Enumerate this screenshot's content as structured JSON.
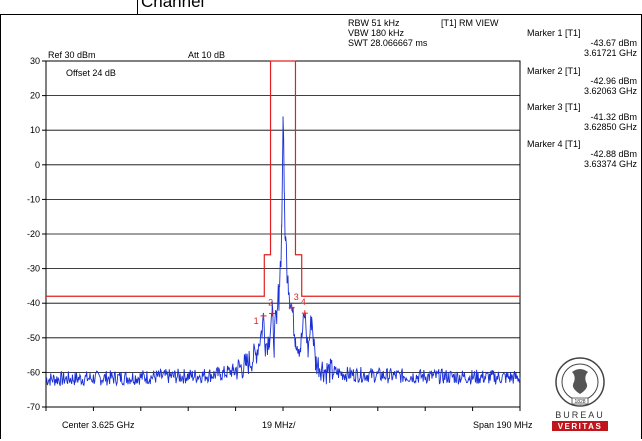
{
  "header": {
    "channel_title": "Channel"
  },
  "settings": {
    "rbw": "RBW 51 kHz",
    "vbw": "VBW 180 kHz",
    "swt": "SWT 28.066667 ms",
    "trace_mode": "[T1] RM VIEW",
    "ref_level": "Ref 30 dBm",
    "attenuation": "Att  10 dB",
    "offset": "Offset 24 dB"
  },
  "markers": [
    {
      "title": "Marker 1 [T1]",
      "level": "-43.67 dBm",
      "freq": "3.61721 GHz",
      "label": "1"
    },
    {
      "title": "Marker 2 [T1]",
      "level": "-42.96 dBm",
      "freq": "3.62063 GHz",
      "label": "2"
    },
    {
      "title": "Marker 3 [T1]",
      "level": "-41.32 dBm",
      "freq": "3.62850 GHz",
      "label": "3"
    },
    {
      "title": "Marker 4 [T1]",
      "level": "-42.88 dBm",
      "freq": "3.63374 GHz",
      "label": "4"
    }
  ],
  "footer": {
    "center": "Center 3.625 GHz",
    "per_div": "19 MHz/",
    "span": "Span 190 MHz"
  },
  "logo": {
    "text": "BUREAU VERITAS",
    "word1": "BUREAU",
    "word2": "VERITAS",
    "year": "1828"
  },
  "chart_data": {
    "type": "line",
    "x_unit": "GHz",
    "y_unit": "dBm",
    "xlim": [
      3.53,
      3.72
    ],
    "ylim": [
      -70,
      30
    ],
    "y_ticks": [
      30,
      20,
      10,
      0,
      -10,
      -20,
      -30,
      -40,
      -50,
      -60,
      -70
    ],
    "grid": true,
    "series": [
      {
        "name": "",
        "color": "#1a2fd6",
        "points": [
          [
            3.53,
            -62.0
          ],
          [
            3.56,
            -61.5
          ],
          [
            3.59,
            -61.0
          ],
          [
            3.6,
            -60.5
          ],
          [
            3.605,
            -59.5
          ],
          [
            3.61,
            -58.0
          ],
          [
            3.614,
            -55.0
          ],
          [
            3.6165,
            -48.0
          ],
          [
            3.61721,
            -43.67
          ],
          [
            3.618,
            -52.0
          ],
          [
            3.6195,
            -50.0
          ],
          [
            3.62063,
            -42.96
          ],
          [
            3.6215,
            -50.0
          ],
          [
            3.6225,
            -46.0
          ],
          [
            3.6235,
            -35.0
          ],
          [
            3.624,
            -28.0
          ],
          [
            3.6245,
            -18.0
          ],
          [
            3.625,
            14.0
          ],
          [
            3.6255,
            -8.0
          ],
          [
            3.626,
            -22.0
          ],
          [
            3.627,
            -32.0
          ],
          [
            3.6285,
            -41.32
          ],
          [
            3.63,
            -50.0
          ],
          [
            3.632,
            -53.0
          ],
          [
            3.63374,
            -42.88
          ],
          [
            3.635,
            -54.0
          ],
          [
            3.6365,
            -44.0
          ],
          [
            3.638,
            -57.0
          ],
          [
            3.642,
            -59.5
          ],
          [
            3.65,
            -60.5
          ],
          [
            3.67,
            -61.0
          ],
          [
            3.72,
            -61.5
          ]
        ]
      },
      {
        "name": "",
        "color": "#e02020",
        "points": [
          [
            3.53,
            -38.0
          ],
          [
            3.6175,
            -38.0
          ],
          [
            3.6175,
            -26.0
          ],
          [
            3.62,
            -26.0
          ],
          [
            3.62,
            30.0
          ],
          [
            3.63,
            30.0
          ],
          [
            3.63,
            -26.0
          ],
          [
            3.6325,
            -26.0
          ],
          [
            3.6325,
            -38.0
          ],
          [
            3.72,
            -38.0
          ]
        ]
      }
    ]
  }
}
